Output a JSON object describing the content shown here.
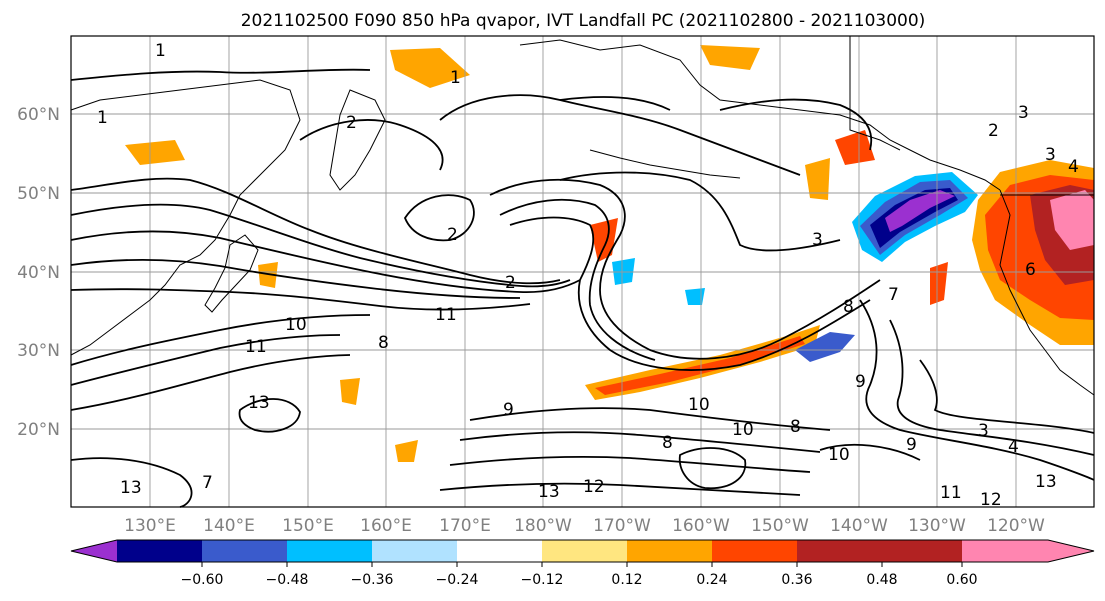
{
  "title": "2021102500 F090 850 hPa qvapor, IVT Landfall PC (2021102800 - 2021103000)",
  "lat_labels": [
    "60°N",
    "50°N",
    "40°N",
    "30°N",
    "20°N"
  ],
  "lon_labels": [
    "130°E",
    "140°E",
    "150°E",
    "160°E",
    "170°E",
    "180°W",
    "170°W",
    "160°W",
    "150°W",
    "140°W",
    "130°W",
    "120°W"
  ],
  "colorbar": {
    "tick_labels": [
      "−0.60",
      "−0.48",
      "−0.36",
      "−0.24",
      "−0.12",
      "0.12",
      "0.24",
      "0.36",
      "0.48",
      "0.60"
    ],
    "colors": [
      "#9b30d0",
      "#00008b",
      "#3a5bcc",
      "#00bfff",
      "#b0e2ff",
      "#ffffff",
      "#ffe680",
      "#ffa500",
      "#ff4500",
      "#b22222",
      "#ff85b0"
    ]
  },
  "contour_labels": [
    "1",
    "1",
    "1",
    "2",
    "2",
    "2",
    "2",
    "3",
    "3",
    "3",
    "3",
    "4",
    "4",
    "6",
    "7",
    "7",
    "8",
    "8",
    "8",
    "8",
    "9",
    "9",
    "9",
    "10",
    "10",
    "10",
    "10",
    "11",
    "11",
    "11",
    "12",
    "12",
    "13",
    "13",
    "13",
    "13"
  ]
}
